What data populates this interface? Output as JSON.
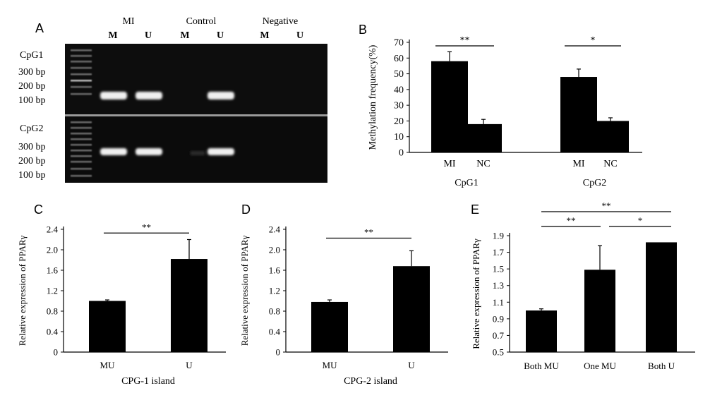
{
  "panels": {
    "A": "A",
    "B": "B",
    "C": "C",
    "D": "D",
    "E": "E"
  },
  "gel": {
    "groups": [
      "MI",
      "Control",
      "Negative"
    ],
    "lanes": [
      "M",
      "U",
      "M",
      "U",
      "M",
      "U"
    ],
    "rows": [
      {
        "name": "CpG1",
        "markers": [
          "300 bp",
          "200 bp",
          "100 bp"
        ],
        "bands": [
          true,
          true,
          false,
          true,
          false,
          false
        ]
      },
      {
        "name": "CpG2",
        "markers": [
          "300 bp",
          "200 bp",
          "100 bp"
        ],
        "bands": [
          true,
          true,
          false,
          true,
          false,
          false
        ]
      }
    ]
  },
  "chart_data": [
    {
      "id": "B",
      "type": "bar",
      "ylabel": "Methylation frequency(%)",
      "ylim": [
        0,
        70
      ],
      "yticks": [
        0,
        10,
        20,
        30,
        40,
        50,
        60,
        70
      ],
      "groups": [
        {
          "label": "CpG1",
          "categories": [
            "MI",
            "NC"
          ],
          "values": [
            58,
            18
          ],
          "errors": [
            6,
            3
          ]
        },
        {
          "label": "CpG2",
          "categories": [
            "MI",
            "NC"
          ],
          "values": [
            48,
            20
          ],
          "errors": [
            5,
            2
          ]
        }
      ],
      "significance": [
        {
          "group": 0,
          "from": 0,
          "to": 1,
          "text": "**"
        },
        {
          "group": 1,
          "from": 0,
          "to": 1,
          "text": "*"
        }
      ]
    },
    {
      "id": "C",
      "type": "bar",
      "ylabel": "Relative expression of PPARγ",
      "xlabel": "CPG-1 island",
      "ylim": [
        0,
        2.4
      ],
      "yticks": [
        "0",
        "0.4",
        "0.8",
        "1.2",
        "1.6",
        "2.0",
        "2.4"
      ],
      "categories": [
        "MU",
        "U"
      ],
      "values": [
        1.0,
        1.82
      ],
      "errors": [
        0.02,
        0.38
      ],
      "significance": [
        {
          "from": 0,
          "to": 1,
          "text": "**",
          "y": 2.3
        }
      ]
    },
    {
      "id": "D",
      "type": "bar",
      "ylabel": "Relative expression of PPARγ",
      "xlabel": "CPG-2 island",
      "ylim": [
        0,
        2.4
      ],
      "yticks": [
        "0",
        "0.4",
        "0.8",
        "1.2",
        "1.6",
        "2.0",
        "2.4"
      ],
      "categories": [
        "MU",
        "U"
      ],
      "values": [
        0.98,
        1.68
      ],
      "errors": [
        0.04,
        0.3
      ],
      "significance": [
        {
          "from": 0,
          "to": 1,
          "text": "**",
          "y": 2.2
        }
      ]
    },
    {
      "id": "E",
      "type": "bar",
      "ylabel": "Relative expression of PPARγ",
      "ylim": [
        0.5,
        1.9
      ],
      "yticks": [
        "0.5",
        "0.7",
        "0.9",
        "1.1",
        "1.3",
        "1.5",
        "1.7",
        "1.9"
      ],
      "categories": [
        "Both MU",
        "One MU",
        "Both U"
      ],
      "values": [
        1.0,
        1.49,
        1.82
      ],
      "errors": [
        0.02,
        0.29,
        0
      ],
      "significance": [
        {
          "from": 0,
          "to": 2,
          "text": "**",
          "level": 2
        },
        {
          "from": 0,
          "to": 1,
          "text": "**",
          "level": 1
        },
        {
          "from": 1,
          "to": 2,
          "text": "*",
          "level": 1
        }
      ]
    }
  ]
}
